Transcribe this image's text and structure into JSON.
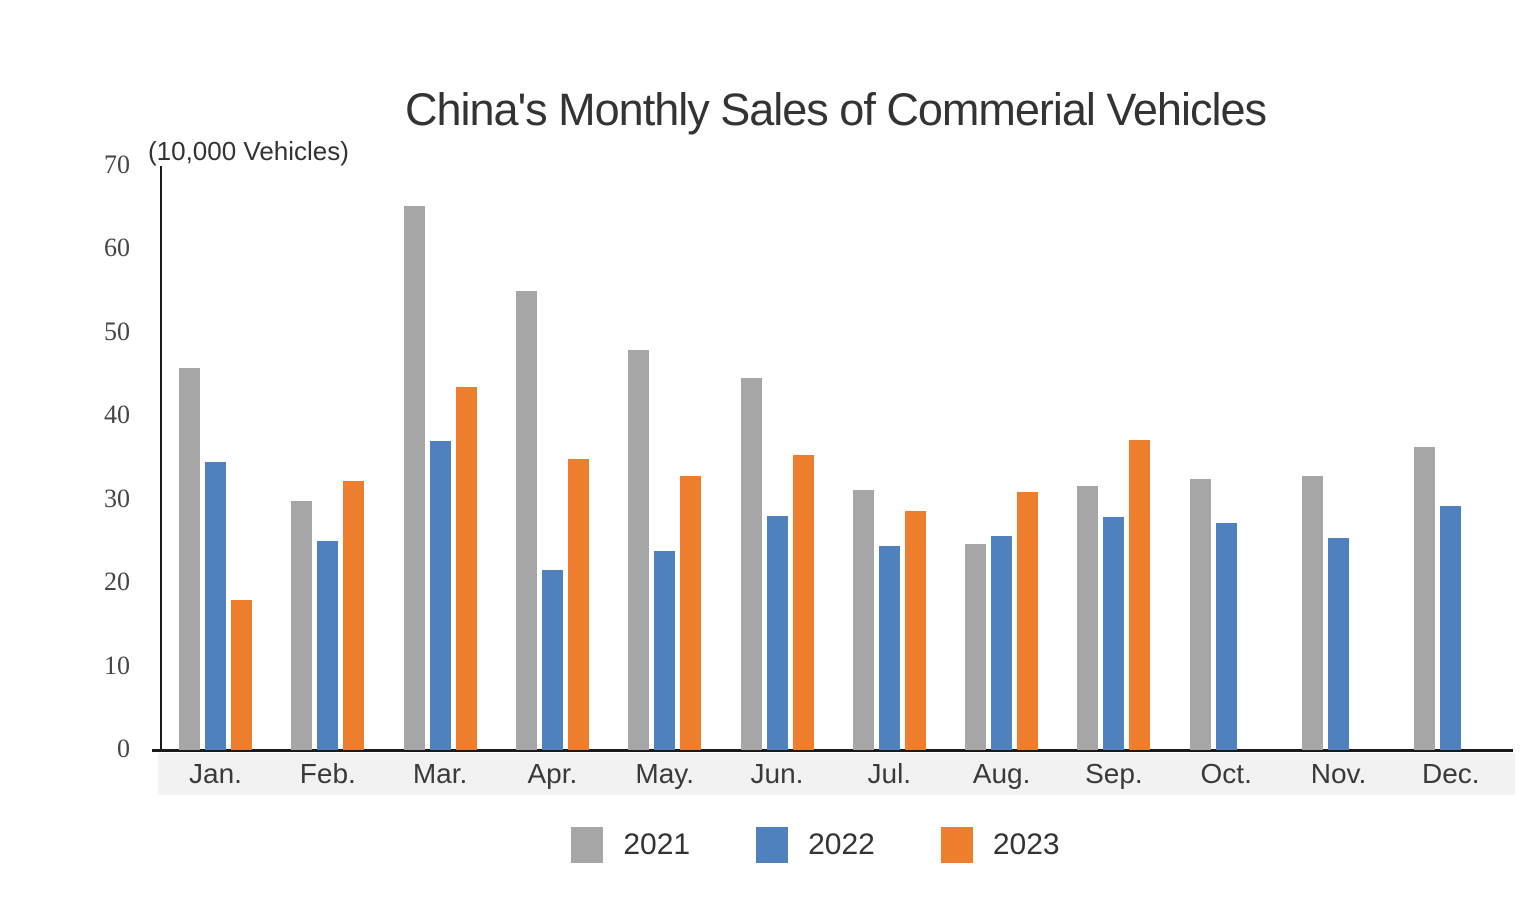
{
  "chart_data": {
    "type": "bar",
    "title": "China's Monthly Sales of Commerial Vehicles",
    "unit_label": "(10,000 Vehicles)",
    "xlabel": "",
    "ylabel": "",
    "categories": [
      "Jan.",
      "Feb.",
      "Mar.",
      "Apr.",
      "May.",
      "Jun.",
      "Jul.",
      "Aug.",
      "Sep.",
      "Oct.",
      "Nov.",
      "Dec."
    ],
    "series": [
      {
        "name": "2021",
        "color": "#A6A6A6",
        "values": [
          45.8,
          29.8,
          65.2,
          55.0,
          48.0,
          44.6,
          31.2,
          24.7,
          31.6,
          32.5,
          32.8,
          36.3
        ]
      },
      {
        "name": "2022",
        "color": "#4E81BD",
        "values": [
          34.5,
          25.0,
          37.0,
          21.6,
          23.9,
          28.1,
          24.4,
          25.7,
          27.9,
          27.2,
          25.4,
          29.2
        ]
      },
      {
        "name": "2023",
        "color": "#EF7D2E",
        "values": [
          18.0,
          32.3,
          43.5,
          34.9,
          32.9,
          35.4,
          28.7,
          30.9,
          37.1,
          null,
          null,
          null
        ]
      }
    ],
    "ylim": [
      0,
      70
    ],
    "yticks": [
      0,
      10,
      20,
      30,
      40,
      50,
      60,
      70
    ],
    "grid": false,
    "legend_position": "bottom",
    "axis_color": "#1a1a1a",
    "text_color": "#333333"
  }
}
